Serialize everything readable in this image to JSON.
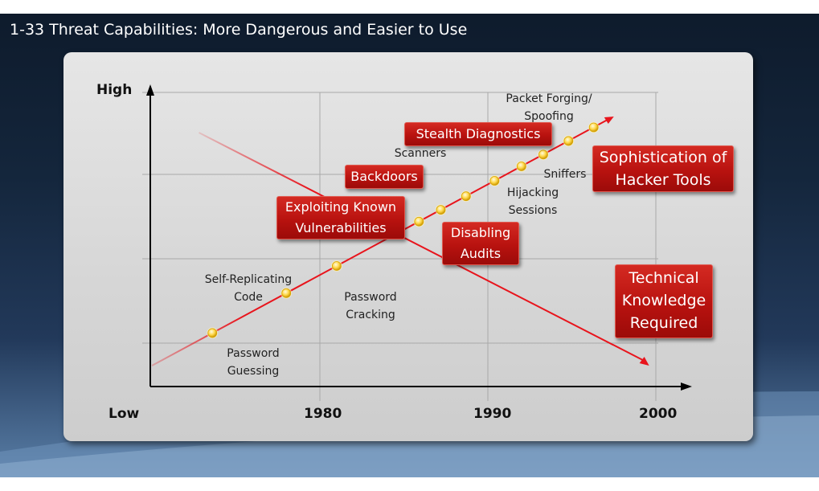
{
  "slide": {
    "title": "1-33  Threat Capabilities: More Dangerous and Easier to Use",
    "colors": {
      "background": "#14263c",
      "arrow": "#e8141c",
      "box": "#c41e17",
      "dot": "#ffd84a"
    }
  },
  "chart_data": {
    "type": "line",
    "y_labels": {
      "high": "High",
      "low": "Low"
    },
    "x_ticks": [
      "1980",
      "1990",
      "2000"
    ],
    "xlim": [
      1970,
      2001
    ],
    "grid": true,
    "series": [
      {
        "label": "Sophistication of Hacker Tools",
        "trend": "increasing",
        "dots": [
          1973.6,
          1978.0,
          1981.0,
          1985.9,
          1987.2,
          1988.7,
          1990.4,
          1992.0,
          1993.3,
          1994.8,
          1996.3
        ]
      },
      {
        "label": "Technical Knowledge Required",
        "trend": "decreasing"
      }
    ],
    "annotations": {
      "packet_forging": "Packet Forging/ Spoofing",
      "stealth_diagnostics": "Stealth Diagnostics",
      "scanners": "Scanners",
      "backdoors": "Backdoors",
      "sniffers": "Sniffers",
      "hijacking": "Hijacking Sessions",
      "exploiting": "Exploiting Known Vulnerabilities",
      "disabling": "Disabling Audits",
      "self_replicating": "Self-Replicating Code",
      "password_cracking": "Password Cracking",
      "password_guessing": "Password Guessing"
    }
  }
}
